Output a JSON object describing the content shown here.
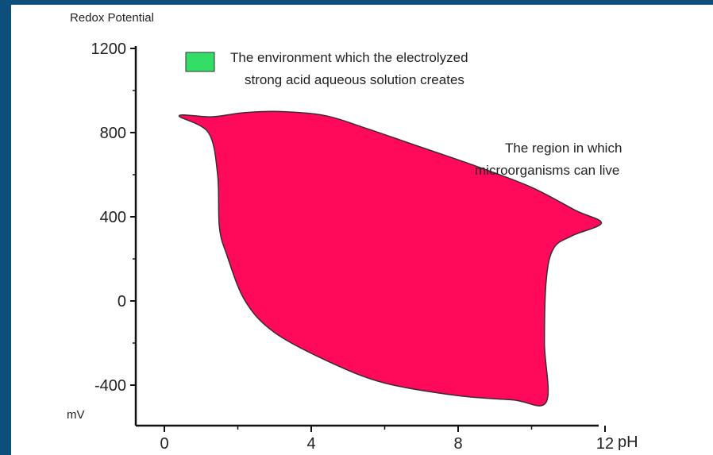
{
  "chart_data": {
    "type": "area",
    "title": "",
    "ylabel": "Redox Potential",
    "y_unit": "mV",
    "xlabel": "pH",
    "xlim": [
      0,
      12
    ],
    "ylim": [
      -500,
      1200
    ],
    "x_ticks": [
      0,
      4,
      8,
      12
    ],
    "x_tick_labels": [
      "0",
      "4",
      "8",
      "12"
    ],
    "y_ticks": [
      1200,
      800,
      400,
      0,
      -400
    ],
    "y_tick_labels": [
      "1200",
      "800",
      "400",
      "0",
      "-400"
    ],
    "grid": false,
    "legend": {
      "placement": "top-left",
      "color": "#33dd66",
      "text_line1": "The environment which the electrolyzed",
      "text_line2": "strong acid aqueous solution creates"
    },
    "annotation": {
      "line1": "The region in which",
      "line2": "microorganisms can live"
    },
    "regions": [
      {
        "color": "#ff0a5a",
        "points": [
          [
            0.4,
            880
          ],
          [
            1.3,
            875
          ],
          [
            2.2,
            895
          ],
          [
            3.2,
            900
          ],
          [
            4.4,
            880
          ],
          [
            5.5,
            820
          ],
          [
            7,
            730
          ],
          [
            8.5,
            640
          ],
          [
            10,
            540
          ],
          [
            11.2,
            430
          ],
          [
            11.9,
            370
          ],
          [
            11.1,
            310
          ],
          [
            10.6,
            250
          ],
          [
            10.4,
            100
          ],
          [
            10.35,
            -200
          ],
          [
            10.4,
            -480
          ],
          [
            9.5,
            -470
          ],
          [
            8,
            -450
          ],
          [
            6,
            -390
          ],
          [
            4.5,
            -290
          ],
          [
            3,
            -150
          ],
          [
            2.2,
            0
          ],
          [
            1.7,
            220
          ],
          [
            1.5,
            350
          ],
          [
            1.45,
            600
          ],
          [
            1.2,
            800
          ]
        ]
      }
    ]
  }
}
